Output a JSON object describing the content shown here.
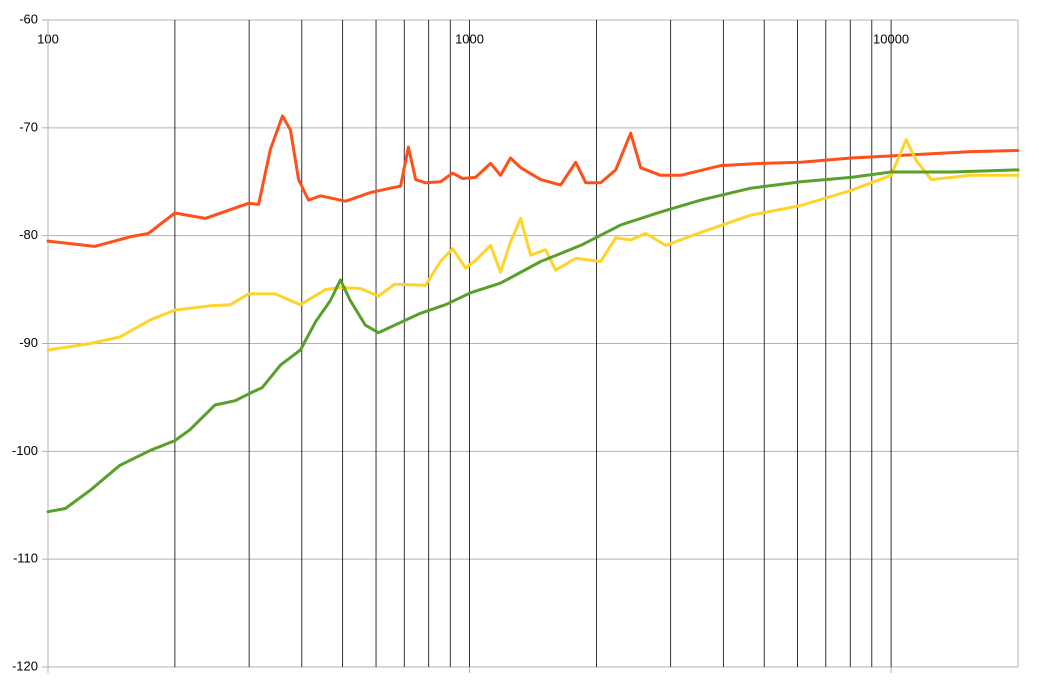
{
  "chart_data": {
    "type": "line",
    "log_x": true,
    "grid": true,
    "xlim": [
      100,
      20000
    ],
    "ylim": [
      -120,
      -60
    ],
    "xticks": [
      100,
      1000,
      10000
    ],
    "xminorticks": [
      200,
      300,
      400,
      500,
      600,
      700,
      800,
      900,
      2000,
      3000,
      4000,
      5000,
      6000,
      7000,
      8000,
      9000
    ],
    "yticks": [
      -120,
      -110,
      -100,
      -90,
      -80,
      -70,
      -60
    ],
    "series": [
      {
        "color": "#ff4f1a",
        "x": [
          100,
          129,
          157,
          173,
          200,
          236,
          299,
          316,
          337,
          360,
          376,
          393,
          415,
          443,
          508,
          582,
          649,
          686,
          716,
          745,
          786,
          853,
          912,
          962,
          1033,
          1122,
          1185,
          1251,
          1322,
          1475,
          1644,
          1786,
          1887,
          2047,
          2222,
          2411,
          2547,
          2843,
          3170,
          3945,
          4910,
          6111,
          8035,
          10000,
          12450,
          15490,
          20000
        ],
        "values": [
          -80.5,
          -81,
          -80.1,
          -79.8,
          -77.9,
          -78.4,
          -77,
          -77.1,
          -72,
          -68.9,
          -70.2,
          -74.8,
          -76.7,
          -76.3,
          -76.8,
          -76,
          -75.6,
          -75.4,
          -71.8,
          -74.8,
          -75.1,
          -75,
          -74.2,
          -74.7,
          -74.6,
          -73.3,
          -74.4,
          -72.8,
          -73.7,
          -74.8,
          -75.3,
          -73.2,
          -75.1,
          -75.1,
          -73.9,
          -70.5,
          -73.7,
          -74.4,
          -74.4,
          -73.5,
          -73.3,
          -73.2,
          -72.8,
          -72.6,
          -72.4,
          -72.2,
          -72.1
        ]
      },
      {
        "color": "#ffd32a",
        "x": [
          100,
          126,
          148,
          175,
          200,
          243,
          271,
          299,
          346,
          397,
          455,
          494,
          551,
          608,
          664,
          786,
          853,
          912,
          978,
          1033,
          1122,
          1185,
          1251,
          1322,
          1396,
          1516,
          1600,
          1786,
          2047,
          2222,
          2411,
          2618,
          2922,
          3538,
          4645,
          6111,
          8035,
          10000,
          10860,
          11460,
          12450,
          15490,
          20000
        ],
        "values": [
          -90.6,
          -90,
          -89.4,
          -87.8,
          -86.9,
          -86.5,
          -86.4,
          -85.4,
          -85.4,
          -86.4,
          -85,
          -84.8,
          -84.9,
          -85.6,
          -84.5,
          -84.6,
          -82.4,
          -81.2,
          -83,
          -82.3,
          -80.9,
          -83.4,
          -80.6,
          -78.4,
          -81.8,
          -81.3,
          -83.2,
          -82.1,
          -82.4,
          -80.2,
          -80.4,
          -79.8,
          -80.9,
          -79.7,
          -78.1,
          -77.2,
          -75.8,
          -74.4,
          -71.1,
          -73,
          -74.8,
          -74.4,
          -74.4
        ]
      },
      {
        "color": "#57a02a",
        "x": [
          100,
          110,
          126,
          148,
          175,
          200,
          217,
          249,
          278,
          302,
          322,
          356,
          397,
          431,
          468,
          494,
          521,
          566,
          608,
          664,
          765,
          877,
          1005,
          1185,
          1475,
          1835,
          2284,
          2843,
          3538,
          4645,
          6111,
          8035,
          10000,
          13900,
          20000
        ],
        "values": [
          -105.6,
          -105.3,
          -103.6,
          -101.3,
          -99.9,
          -99,
          -98,
          -95.7,
          -95.3,
          -94.6,
          -94.1,
          -92,
          -90.6,
          -88,
          -86,
          -84.1,
          -86,
          -88.3,
          -89,
          -88.3,
          -87.2,
          -86.4,
          -85.3,
          -84.4,
          -82.4,
          -80.9,
          -79,
          -77.8,
          -76.7,
          -75.6,
          -75,
          -74.6,
          -74.1,
          -74.1,
          -73.9
        ]
      }
    ]
  }
}
